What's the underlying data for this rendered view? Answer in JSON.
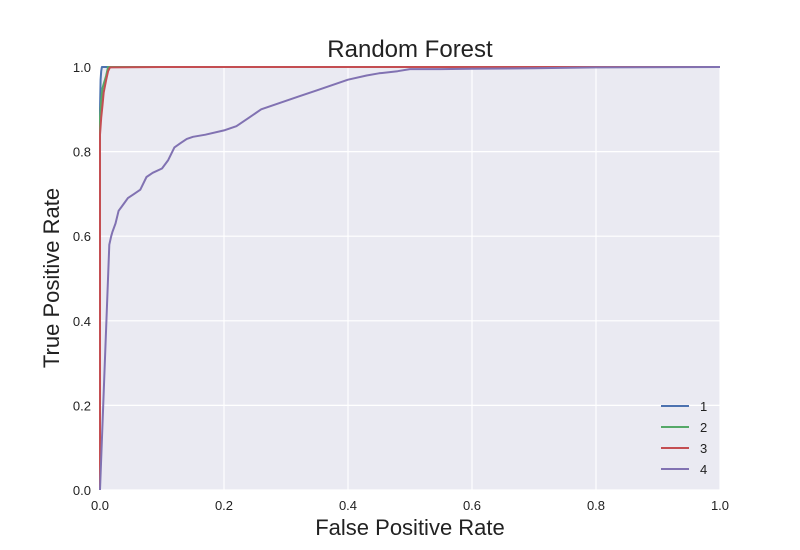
{
  "chart_data": {
    "type": "line",
    "title": "Random Forest",
    "xlabel": "False Positive Rate",
    "ylabel": "True Positive Rate",
    "xlim": [
      0,
      1
    ],
    "ylim": [
      0,
      1
    ],
    "xticks": [
      "0.0",
      "0.2",
      "0.4",
      "0.6",
      "0.8",
      "1.0"
    ],
    "yticks": [
      "0.0",
      "0.2",
      "0.4",
      "0.6",
      "0.8",
      "1.0"
    ],
    "grid": true,
    "legend_position": "lower-right",
    "series": [
      {
        "name": "1",
        "color": "#4c72b0",
        "x": [
          0.0,
          0.0,
          0.001,
          0.002,
          0.003,
          1.0
        ],
        "y": [
          0.0,
          0.9,
          0.97,
          0.99,
          1.0,
          1.0
        ]
      },
      {
        "name": "2",
        "color": "#55a868",
        "x": [
          0.0,
          0.0,
          0.002,
          0.004,
          0.006,
          0.008,
          0.01,
          0.013,
          1.0
        ],
        "y": [
          0.0,
          0.88,
          0.92,
          0.95,
          0.96,
          0.97,
          0.98,
          1.0,
          1.0
        ]
      },
      {
        "name": "3",
        "color": "#c44e52",
        "x": [
          0.0,
          0.0,
          0.002,
          0.004,
          0.006,
          0.01,
          0.013,
          0.016,
          0.1,
          1.0
        ],
        "y": [
          0.0,
          0.84,
          0.88,
          0.91,
          0.94,
          0.97,
          0.99,
          0.999,
          1.0,
          1.0
        ]
      },
      {
        "name": "4",
        "color": "#8172b2",
        "x": [
          0.0,
          0.015,
          0.018,
          0.02,
          0.025,
          0.03,
          0.035,
          0.04,
          0.045,
          0.055,
          0.065,
          0.075,
          0.085,
          0.1,
          0.11,
          0.12,
          0.13,
          0.14,
          0.15,
          0.17,
          0.2,
          0.22,
          0.24,
          0.26,
          0.28,
          0.3,
          0.32,
          0.35,
          0.38,
          0.4,
          0.43,
          0.45,
          0.48,
          0.5,
          0.55,
          0.6,
          0.7,
          0.8,
          1.0
        ],
        "y": [
          0.0,
          0.58,
          0.6,
          0.61,
          0.63,
          0.66,
          0.67,
          0.68,
          0.69,
          0.7,
          0.71,
          0.74,
          0.75,
          0.76,
          0.78,
          0.81,
          0.82,
          0.83,
          0.835,
          0.84,
          0.85,
          0.86,
          0.88,
          0.9,
          0.91,
          0.92,
          0.93,
          0.945,
          0.96,
          0.97,
          0.98,
          0.985,
          0.99,
          0.995,
          0.995,
          0.996,
          0.997,
          0.999,
          1.0
        ]
      }
    ]
  }
}
